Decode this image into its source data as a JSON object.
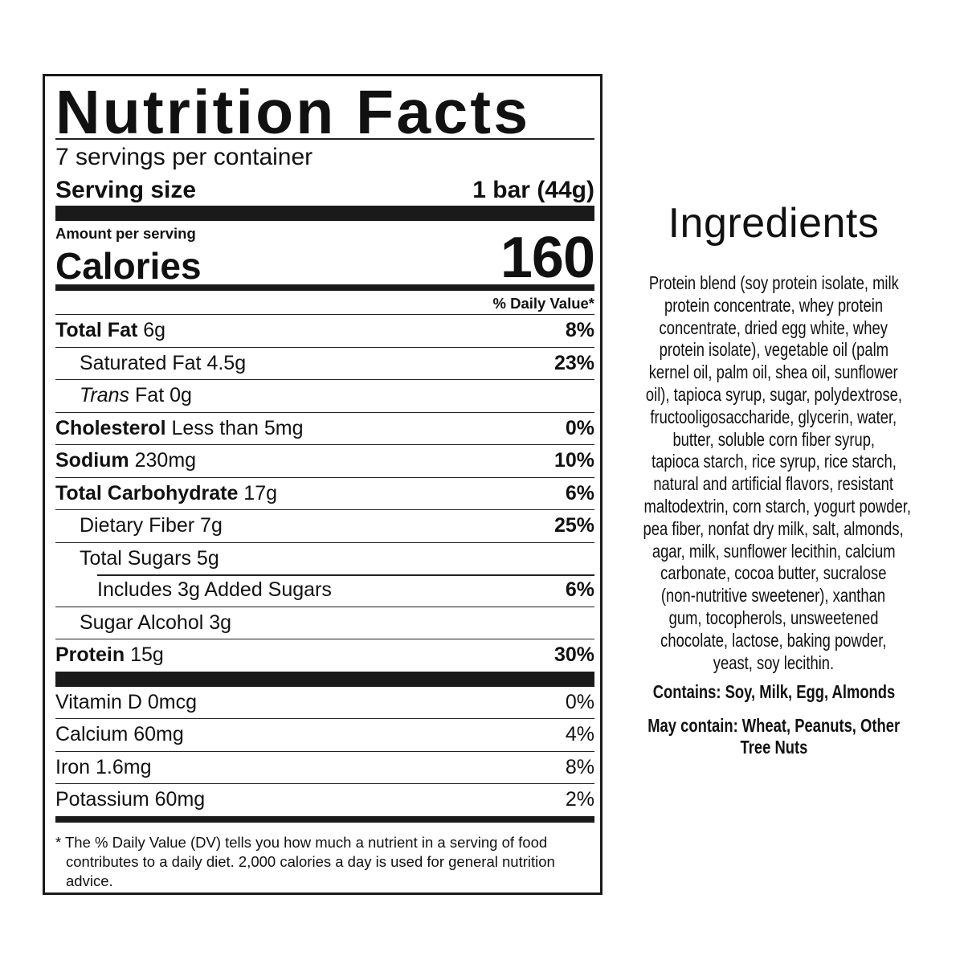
{
  "nutrition": {
    "title": "Nutrition Facts",
    "servings_per_container": "7 servings per container",
    "serving_size_label": "Serving size",
    "serving_size_value": "1 bar (44g)",
    "amount_per_serving": "Amount per serving",
    "calories_label": "Calories",
    "calories_value": "160",
    "daily_value_header": "% Daily Value*",
    "nutrients": [
      {
        "name": "Total Fat",
        "amount": "6g",
        "dv": "8%"
      },
      {
        "name": "Saturated Fat",
        "amount": "4.5g",
        "dv": "23%"
      },
      {
        "name": "Trans",
        "amount": "Fat 0g",
        "dv": ""
      },
      {
        "name": "Cholesterol",
        "amount": "Less than 5mg",
        "dv": "0%"
      },
      {
        "name": "Sodium",
        "amount": "230mg",
        "dv": "10%"
      },
      {
        "name": "Total Carbohydrate",
        "amount": "17g",
        "dv": "6%"
      },
      {
        "name": "Dietary Fiber",
        "amount": "7g",
        "dv": "25%"
      },
      {
        "name": "Total Sugars",
        "amount": "5g",
        "dv": ""
      },
      {
        "name": "Includes 3g Added Sugars",
        "amount": "",
        "dv": "6%"
      },
      {
        "name": "Sugar Alcohol",
        "amount": "3g",
        "dv": ""
      },
      {
        "name": "Protein",
        "amount": "15g",
        "dv": "30%"
      }
    ],
    "vitamins": [
      {
        "name": "Vitamin D 0mcg",
        "dv": "0%"
      },
      {
        "name": "Calcium 60mg",
        "dv": "4%"
      },
      {
        "name": "Iron 1.6mg",
        "dv": "8%"
      },
      {
        "name": "Potassium 60mg",
        "dv": "2%"
      }
    ],
    "footnote": "* The % Daily Value (DV) tells you how much a nutrient in a serving of food contributes to a daily diet. 2,000 calories a day is used for general nutrition advice."
  },
  "ingredients": {
    "title": "Ingredients",
    "lines": [
      "Protein blend (soy protein isolate, milk",
      "protein concentrate, whey protein",
      "concentrate, dried egg white, whey",
      "protein isolate), vegetable oil (palm",
      "kernel oil, palm oil, shea oil, sunflower",
      "oil), tapioca syrup, sugar, polydextrose,",
      "fructooligosaccharide, glycerin, water,",
      "butter, soluble corn fiber syrup,",
      "tapioca starch, rice syrup, rice starch,",
      "natural and artificial flavors, resistant",
      "maltodextrin, corn starch, yogurt powder,",
      "pea fiber, nonfat dry milk, salt, almonds,",
      "agar, milk, sunflower lecithin, calcium",
      "carbonate, cocoa butter, sucralose",
      "(non-nutritive sweetener), xanthan",
      "gum, tocopherols, unsweetened",
      "chocolate, lactose, baking powder,",
      "yeast, soy lecithin."
    ],
    "contains": "Contains: Soy, Milk, Egg, Almonds",
    "may_contain_line1": "May contain: Wheat, Peanuts, Other",
    "may_contain_line2": "Tree Nuts"
  }
}
